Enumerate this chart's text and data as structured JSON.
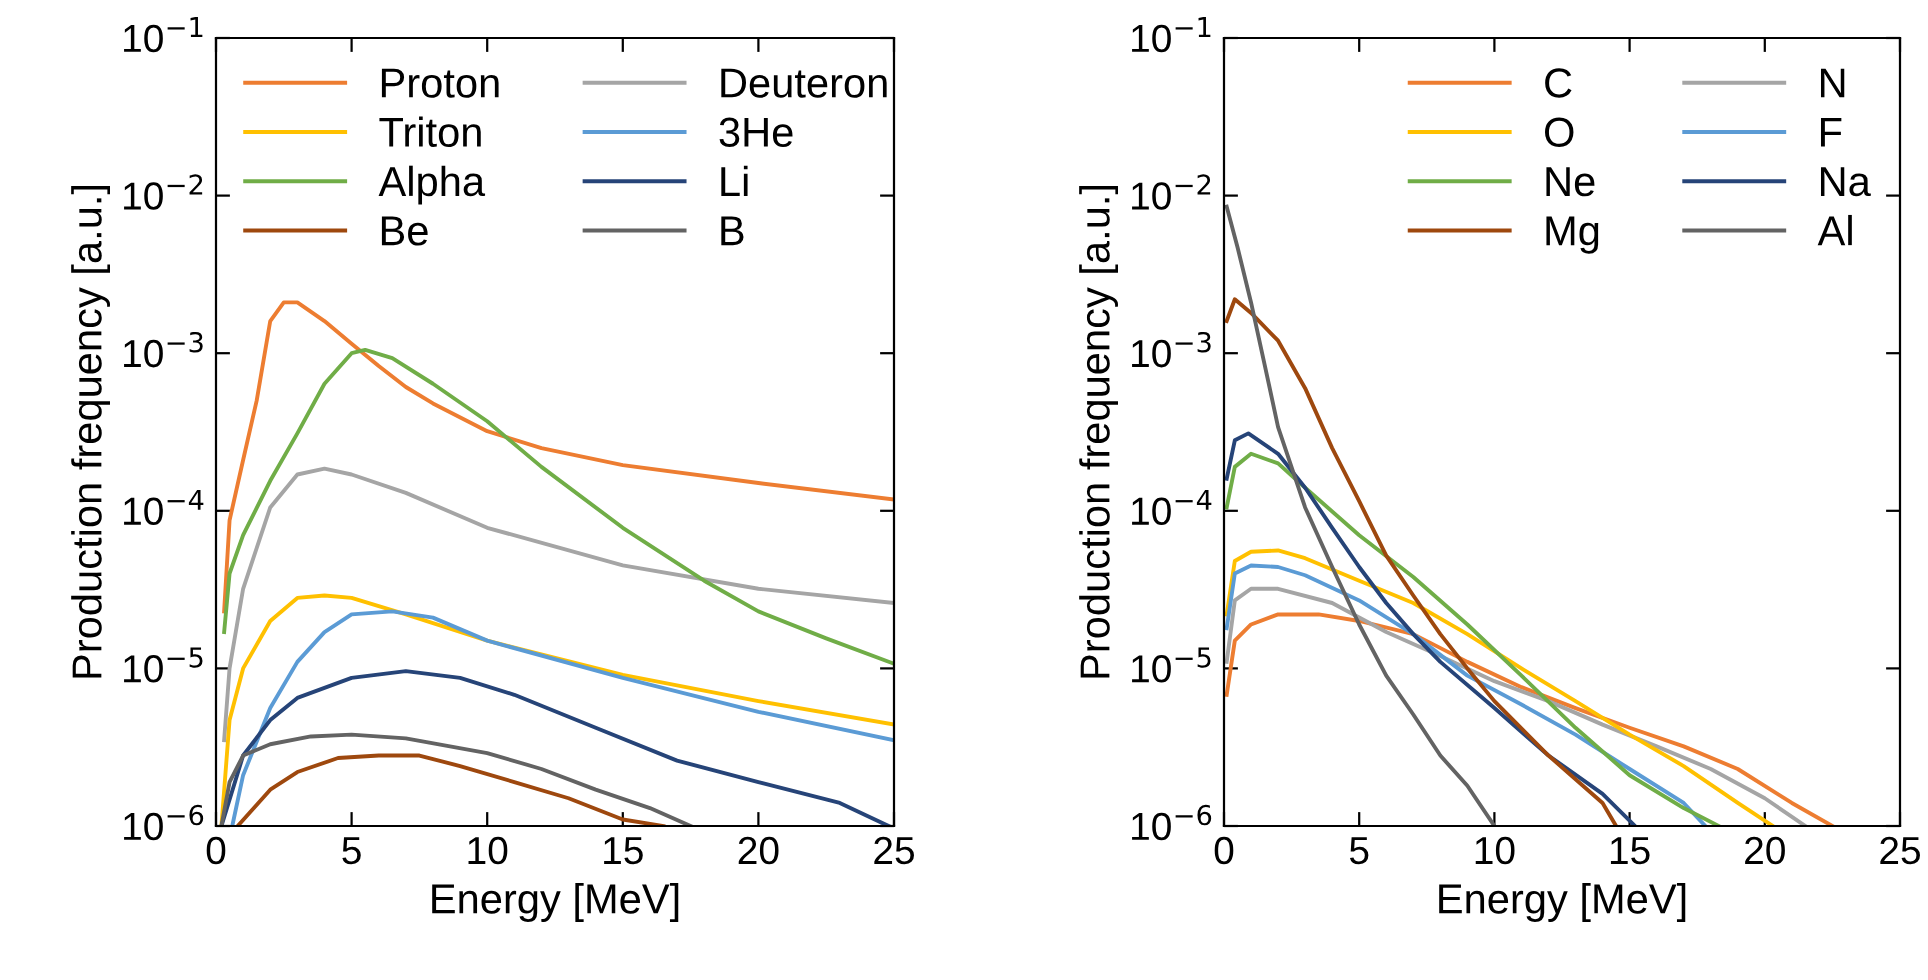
{
  "chart_data": [
    {
      "type": "line",
      "xlabel": "Energy [MeV]",
      "ylabel": "Production frequency [a.u.]",
      "log": "y",
      "xlim": [
        0,
        25
      ],
      "xticks": [
        0,
        5,
        10,
        15,
        20,
        25
      ],
      "ylim": [
        1e-06,
        0.1
      ],
      "yticks": [
        {
          "value": 1e-06,
          "label": "10$^{−6}$"
        },
        {
          "value": 1e-05,
          "label": "10$^{−5}$"
        },
        {
          "value": 0.0001,
          "label": "10$^{−4}$"
        },
        {
          "value": 0.001,
          "label": "10$^{−3}$"
        },
        {
          "value": 0.01,
          "label": "10$^{−2}$"
        },
        {
          "value": 0.1,
          "label": "10$^{−1}$"
        }
      ],
      "grid": false,
      "legend": "top left",
      "line_style": "solid",
      "marker": "none",
      "series": [
        {
          "name": "Proton",
          "color": "#ed7d31",
          "x": [
            0.3,
            0.5,
            1,
            1.5,
            2,
            2.5,
            3,
            4,
            5,
            6,
            7,
            8,
            10,
            12,
            15,
            20,
            25
          ],
          "values": [
            2.3e-05,
            8.7e-05,
            0.00021,
            0.0005,
            0.0016,
            0.0021,
            0.0021,
            0.0016,
            0.00115,
            0.00083,
            0.00061,
            0.00048,
            0.00032,
            0.00025,
            0.000195,
            0.00015,
            0.000118
          ]
        },
        {
          "name": "Deuteron",
          "color": "#a5a5a5",
          "x": [
            0.3,
            0.5,
            1,
            2,
            3,
            4,
            5,
            7,
            10,
            15,
            20,
            25
          ],
          "values": [
            3.5e-06,
            1e-05,
            3.2e-05,
            0.000105,
            0.00017,
            0.000185,
            0.00017,
            0.00013,
            7.8e-05,
            4.5e-05,
            3.2e-05,
            2.6e-05
          ]
        },
        {
          "name": "Triton",
          "color": "#ffc000",
          "x": [
            0.2,
            0.5,
            1,
            2,
            3,
            4,
            5,
            7,
            10,
            15,
            20,
            25
          ],
          "values": [
            1e-06,
            4.7e-06,
            1e-05,
            2e-05,
            2.8e-05,
            2.9e-05,
            2.8e-05,
            2.2e-05,
            1.5e-05,
            9.1e-06,
            6.2e-06,
            4.4e-06
          ]
        },
        {
          "name": "3He",
          "color": "#5b9bd5",
          "x": [
            0.6,
            1,
            2,
            3,
            4,
            5,
            6.5,
            8,
            10,
            15,
            20,
            25
          ],
          "values": [
            1e-06,
            2.1e-06,
            5.6e-06,
            1.1e-05,
            1.7e-05,
            2.2e-05,
            2.3e-05,
            2.1e-05,
            1.5e-05,
            8.7e-06,
            5.3e-06,
            3.5e-06
          ]
        },
        {
          "name": "Alpha",
          "color": "#70ad47",
          "x": [
            0.3,
            0.5,
            1,
            2,
            3,
            4,
            5,
            5.5,
            6.5,
            8,
            10,
            12,
            15,
            18,
            20,
            22.5,
            25
          ],
          "values": [
            1.7e-05,
            4e-05,
            7e-05,
            0.000155,
            0.00031,
            0.00064,
            0.001,
            0.00105,
            0.00093,
            0.00064,
            0.00037,
            0.00019,
            7.8e-05,
            3.6e-05,
            2.3e-05,
            1.55e-05,
            1.07e-05
          ]
        },
        {
          "name": "Li",
          "color": "#264478",
          "x": [
            0.2,
            1,
            2,
            3,
            5,
            7,
            9,
            11,
            14,
            17,
            20,
            23,
            24.8
          ],
          "values": [
            1e-06,
            2.8e-06,
            4.7e-06,
            6.5e-06,
            8.7e-06,
            9.6e-06,
            8.7e-06,
            6.8e-06,
            4.2e-06,
            2.6e-06,
            1.9e-06,
            1.4e-06,
            1e-06
          ]
        },
        {
          "name": "Be",
          "color": "#9e480e",
          "x": [
            0.8,
            2,
            3,
            4.5,
            6,
            7.5,
            9,
            11,
            13,
            15,
            16.5
          ],
          "values": [
            1e-06,
            1.7e-06,
            2.2e-06,
            2.7e-06,
            2.8e-06,
            2.8e-06,
            2.4e-06,
            1.9e-06,
            1.5e-06,
            1.1e-06,
            1e-06
          ]
        },
        {
          "name": "B",
          "color": "#636363",
          "x": [
            0.2,
            0.5,
            1,
            2,
            3.5,
            5,
            7,
            10,
            12,
            14,
            16,
            17.5
          ],
          "values": [
            1e-06,
            1.9e-06,
            2.8e-06,
            3.3e-06,
            3.7e-06,
            3.8e-06,
            3.6e-06,
            2.9e-06,
            2.3e-06,
            1.7e-06,
            1.3e-06,
            1e-06
          ]
        }
      ]
    },
    {
      "type": "line",
      "xlabel": "Energy [MeV]",
      "ylabel": "Production frequency [a.u.]",
      "log": "y",
      "xlim": [
        0,
        25
      ],
      "xticks": [
        0,
        5,
        10,
        15,
        20,
        25
      ],
      "ylim": [
        1e-06,
        0.1
      ],
      "yticks": [
        {
          "value": 1e-06,
          "label": "10$^{−6}$"
        },
        {
          "value": 1e-05,
          "label": "10$^{−5}$"
        },
        {
          "value": 0.0001,
          "label": "10$^{−4}$"
        },
        {
          "value": 0.001,
          "label": "10$^{−3}$"
        },
        {
          "value": 0.01,
          "label": "10$^{−2}$"
        },
        {
          "value": 0.1,
          "label": "10$^{−1}$"
        }
      ],
      "grid": false,
      "legend": "top right",
      "line_style": "solid",
      "marker": "none",
      "series": [
        {
          "name": "C",
          "color": "#ed7d31",
          "x": [
            0.1,
            0.4,
            1,
            2,
            3.5,
            5,
            7,
            9,
            11,
            13,
            15,
            17,
            19,
            21,
            22.5
          ],
          "values": [
            6.8e-06,
            1.5e-05,
            1.9e-05,
            2.2e-05,
            2.2e-05,
            2e-05,
            1.65e-05,
            1.1e-05,
            7.6e-06,
            5.6e-06,
            4.2e-06,
            3.2e-06,
            2.3e-06,
            1.4e-06,
            1e-06
          ]
        },
        {
          "name": "N",
          "color": "#a5a5a5",
          "x": [
            0.1,
            0.4,
            1,
            2,
            4,
            6,
            8,
            10,
            12,
            14,
            16,
            18,
            20,
            21.5
          ],
          "values": [
            1.1e-05,
            2.7e-05,
            3.2e-05,
            3.2e-05,
            2.6e-05,
            1.7e-05,
            1.2e-05,
            8.3e-06,
            6.2e-06,
            4.4e-06,
            3.2e-06,
            2.3e-06,
            1.5e-06,
            1e-06
          ]
        },
        {
          "name": "O",
          "color": "#ffc000",
          "x": [
            0.1,
            0.4,
            1,
            2,
            3,
            5,
            7,
            9,
            11,
            13,
            15,
            17,
            19,
            20.3
          ],
          "values": [
            2.2e-05,
            4.8e-05,
            5.5e-05,
            5.6e-05,
            5e-05,
            3.6e-05,
            2.6e-05,
            1.65e-05,
            1e-05,
            6.2e-06,
            3.8e-06,
            2.4e-06,
            1.4e-06,
            1e-06
          ]
        },
        {
          "name": "F",
          "color": "#5b9bd5",
          "x": [
            0.1,
            0.4,
            1,
            2,
            3,
            5,
            7,
            9,
            11,
            13,
            15,
            17,
            17.8
          ],
          "values": [
            1.8e-05,
            4e-05,
            4.5e-05,
            4.4e-05,
            3.9e-05,
            2.7e-05,
            1.65e-05,
            9e-06,
            5.9e-06,
            3.8e-06,
            2.3e-06,
            1.4e-06,
            1e-06
          ]
        },
        {
          "name": "Ne",
          "color": "#70ad47",
          "x": [
            0.1,
            0.4,
            1,
            2,
            3,
            5,
            7,
            9,
            11,
            13,
            15,
            17,
            18.3
          ],
          "values": [
            0.000105,
            0.00019,
            0.00023,
            0.0002,
            0.00014,
            7e-05,
            3.8e-05,
            1.9e-05,
            9e-06,
            4.2e-06,
            2.1e-06,
            1.3e-06,
            1e-06
          ]
        },
        {
          "name": "Na",
          "color": "#264478",
          "x": [
            0.1,
            0.4,
            0.9,
            2,
            3,
            4,
            5,
            6,
            7,
            8,
            10,
            12,
            14,
            15.2
          ],
          "values": [
            0.00016,
            0.00028,
            0.00031,
            0.00023,
            0.00014,
            7.8e-05,
            4.4e-05,
            2.6e-05,
            1.65e-05,
            1.1e-05,
            5.6e-06,
            2.8e-06,
            1.6e-06,
            1e-06
          ]
        },
        {
          "name": "Mg",
          "color": "#9e480e",
          "x": [
            0.1,
            0.4,
            1,
            2,
            3,
            4,
            5,
            6,
            7,
            8,
            9,
            10,
            12,
            14,
            14.5
          ],
          "values": [
            0.0016,
            0.0022,
            0.0018,
            0.0012,
            0.0006,
            0.00025,
            0.000115,
            5.2e-05,
            2.9e-05,
            1.65e-05,
            1e-05,
            6.2e-06,
            2.8e-06,
            1.4e-06,
            1e-06
          ]
        },
        {
          "name": "Al",
          "color": "#636363",
          "x": [
            0.1,
            0.5,
            1,
            1.5,
            2,
            3,
            4,
            5,
            6,
            7,
            8,
            9,
            10
          ],
          "values": [
            0.0085,
            0.0047,
            0.0021,
            0.00085,
            0.00034,
            0.000105,
            4.4e-05,
            1.9e-05,
            9e-06,
            5.1e-06,
            2.8e-06,
            1.8e-06,
            1e-06
          ]
        }
      ]
    }
  ]
}
